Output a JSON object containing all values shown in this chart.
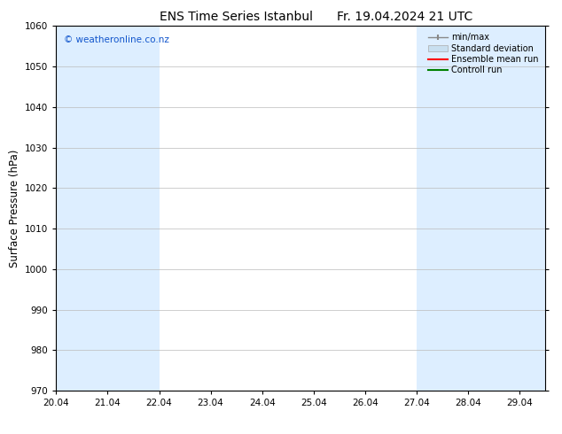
{
  "title": "ENS Time Series Istanbul",
  "date_str": "Fr. 19.04.2024 21 UTC",
  "ylabel": "Surface Pressure (hPa)",
  "ylim": [
    970,
    1060
  ],
  "yticks": [
    970,
    980,
    990,
    1000,
    1010,
    1020,
    1030,
    1040,
    1050,
    1060
  ],
  "xlim": [
    20.04,
    29.54
  ],
  "xmin": 20.04,
  "xmax": 29.54,
  "xtick_labels": [
    "20.04",
    "21.04",
    "22.04",
    "23.04",
    "24.04",
    "25.04",
    "26.04",
    "27.04",
    "28.04",
    "29.04"
  ],
  "xtick_positions": [
    20.04,
    21.04,
    22.04,
    23.04,
    24.04,
    25.04,
    26.04,
    27.04,
    28.04,
    29.04
  ],
  "watermark": "© weatheronline.co.nz",
  "watermark_color": "#1155cc",
  "background_color": "#ffffff",
  "plot_bg_color": "#ffffff",
  "shaded_bands": [
    {
      "x_start": 20.04,
      "x_end": 22.04,
      "color": "#ddeeff"
    },
    {
      "x_start": 27.04,
      "x_end": 29.54,
      "color": "#ddeeff"
    }
  ],
  "band_color": "#ddeeff",
  "grid_color": "#bbbbbb",
  "legend_entries": [
    {
      "label": "min/max",
      "type": "errorbar",
      "color": "#888888"
    },
    {
      "label": "Standard deviation",
      "type": "fill",
      "color": "#c8dff0"
    },
    {
      "label": "Ensemble mean run",
      "type": "line",
      "color": "#ff0000"
    },
    {
      "label": "Controll run",
      "type": "line",
      "color": "#008000"
    }
  ],
  "title_fontsize": 10,
  "tick_fontsize": 7.5,
  "ylabel_fontsize": 8.5,
  "legend_fontsize": 7
}
